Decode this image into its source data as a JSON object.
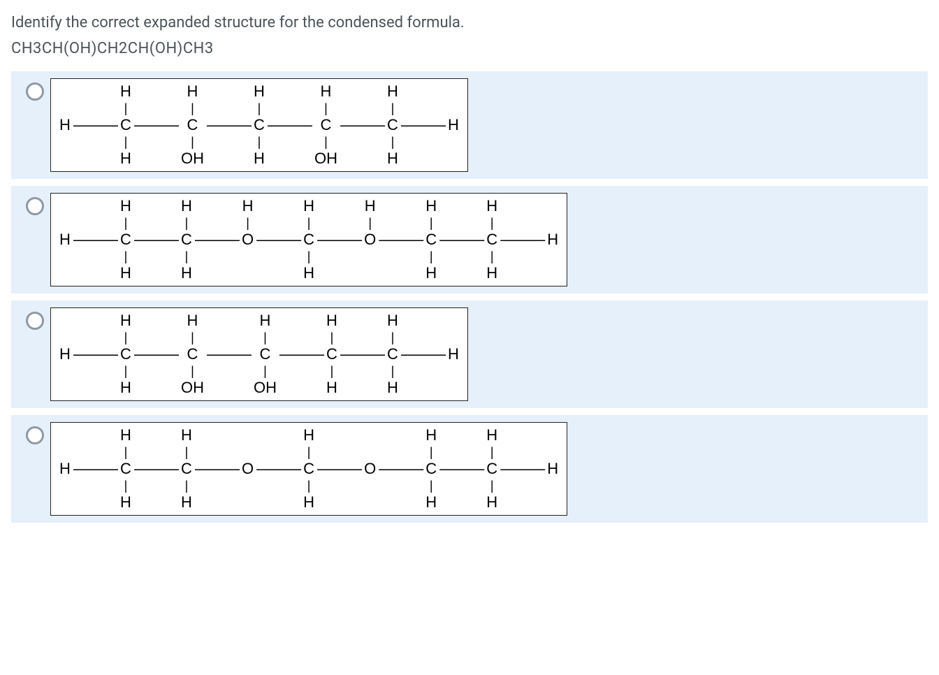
{
  "question": "Identify the correct expanded structure for the condensed formula.",
  "formula": "CH3CH(OH)CH2CH(OH)CH3",
  "colors": {
    "option_bg": "#e5f0fb",
    "box_border": "#222222",
    "text": "#4a5358",
    "radio_border": "#8f99a3"
  },
  "structures": [
    {
      "rows": [
        [
          "",
          "",
          "H",
          "",
          "H",
          "",
          "H",
          "",
          "H",
          "",
          "H",
          "",
          ""
        ],
        [
          "",
          "",
          "|",
          "",
          "|",
          "",
          "|",
          "",
          "|",
          "",
          "|",
          "",
          ""
        ],
        [
          "H",
          "—",
          "C",
          "—",
          "C",
          "—",
          "C",
          "—",
          "C",
          "—",
          "C",
          "—",
          "H"
        ],
        [
          "",
          "",
          "|",
          "",
          "|",
          "",
          "|",
          "",
          "|",
          "",
          "|",
          "",
          ""
        ],
        [
          "",
          "",
          "H",
          "",
          "OH",
          "",
          "H",
          "",
          "OH",
          "",
          "H",
          "",
          ""
        ]
      ]
    },
    {
      "rows": [
        [
          "",
          "",
          "H",
          "",
          "H",
          "",
          "H",
          "",
          "H",
          "",
          "H",
          "",
          "H",
          "",
          "H",
          "",
          ""
        ],
        [
          "",
          "",
          "|",
          "",
          "|",
          "",
          "|",
          "",
          "|",
          "",
          "|",
          "",
          "|",
          "",
          "|",
          "",
          ""
        ],
        [
          "H",
          "—",
          "C",
          "—",
          "C",
          "—",
          "O",
          "—",
          "C",
          "—",
          "O",
          "—",
          "C",
          "—",
          "C",
          "—",
          "H"
        ],
        [
          "",
          "",
          "|",
          "",
          "|",
          "",
          "",
          "",
          "|",
          "",
          "",
          "",
          "|",
          "",
          "|",
          "",
          ""
        ],
        [
          "",
          "",
          "H",
          "",
          "H",
          "",
          "",
          "",
          "H",
          "",
          "",
          "",
          "H",
          "",
          "H",
          "",
          ""
        ]
      ]
    },
    {
      "rows": [
        [
          "",
          "",
          "H",
          "",
          "H",
          "",
          "H",
          "",
          "H",
          "",
          "H",
          "",
          ""
        ],
        [
          "",
          "",
          "|",
          "",
          "|",
          "",
          "|",
          "",
          "|",
          "",
          "|",
          "",
          ""
        ],
        [
          "H",
          "—",
          "C",
          "—",
          "C",
          "—",
          "C",
          "—",
          "C",
          "—",
          "C",
          "—",
          "H"
        ],
        [
          "",
          "",
          "|",
          "",
          "|",
          "",
          "|",
          "",
          "|",
          "",
          "|",
          "",
          ""
        ],
        [
          "",
          "",
          "H",
          "",
          "OH",
          "",
          "OH",
          "",
          "H",
          "",
          "H",
          "",
          ""
        ]
      ]
    },
    {
      "rows": [
        [
          "",
          "",
          "H",
          "",
          "H",
          "",
          "",
          "",
          "H",
          "",
          "",
          "",
          "H",
          "",
          "H",
          "",
          ""
        ],
        [
          "",
          "",
          "|",
          "",
          "|",
          "",
          "",
          "",
          "|",
          "",
          "",
          "",
          "|",
          "",
          "|",
          "",
          ""
        ],
        [
          "H",
          "—",
          "C",
          "—",
          "C",
          "—",
          "O",
          "—",
          "C",
          "—",
          "O",
          "—",
          "C",
          "—",
          "C",
          "—",
          "H"
        ],
        [
          "",
          "",
          "|",
          "",
          "|",
          "",
          "",
          "",
          "|",
          "",
          "",
          "",
          "|",
          "",
          "|",
          "",
          ""
        ],
        [
          "",
          "",
          "H",
          "",
          "H",
          "",
          "",
          "",
          "H",
          "",
          "",
          "",
          "H",
          "",
          "H",
          "",
          ""
        ]
      ]
    }
  ]
}
